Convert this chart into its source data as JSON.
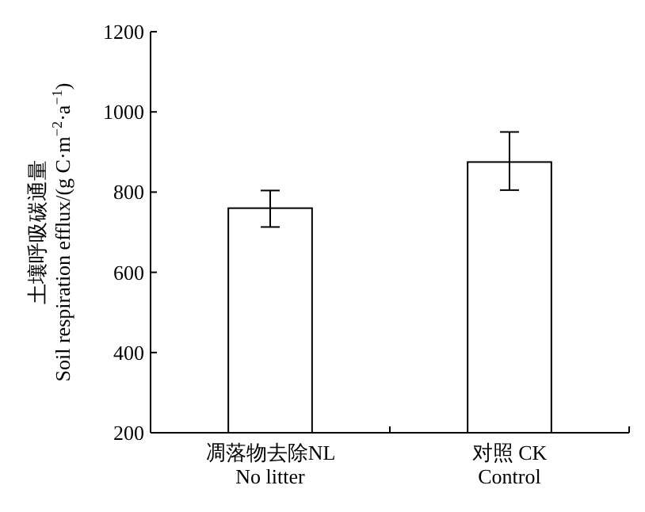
{
  "chart_data": {
    "type": "bar",
    "ylabel": "土壤呼吸碳通量\nSoil respiration efflux/(g C·m$^{−2}$·a$^{−1}$)",
    "categories": [
      "凋落物去除NL\nNo litter",
      "对照 CK\nControl"
    ],
    "values": [
      760,
      875
    ],
    "errors": [
      [
        713,
        804
      ],
      [
        805,
        950
      ]
    ],
    "color": "#ffffff",
    "ylim": [
      200,
      1200
    ],
    "yticks": [
      200,
      400,
      600,
      800,
      1000,
      1200
    ],
    "grid": false
  }
}
